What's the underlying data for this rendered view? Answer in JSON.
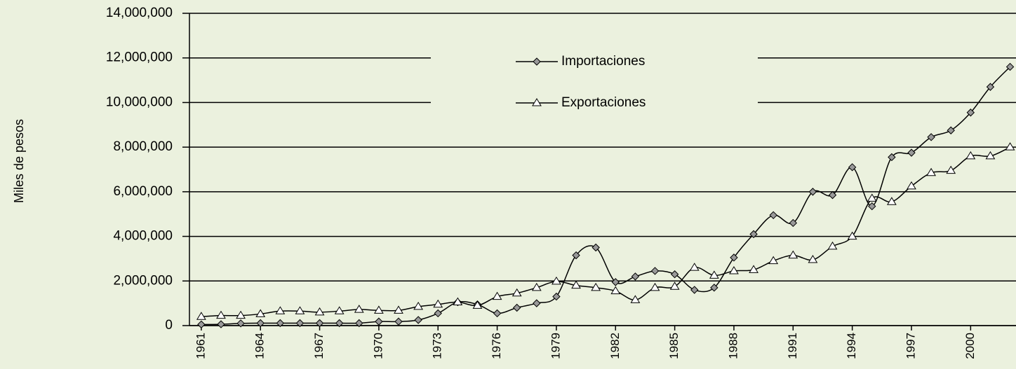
{
  "chart_data": {
    "type": "line",
    "y_label": "Miles de pesos",
    "x": [
      1961,
      1962,
      1963,
      1964,
      1965,
      1966,
      1967,
      1968,
      1969,
      1970,
      1971,
      1972,
      1973,
      1974,
      1975,
      1976,
      1977,
      1978,
      1979,
      1980,
      1981,
      1982,
      1983,
      1984,
      1985,
      1986,
      1987,
      1988,
      1989,
      1990,
      1991,
      1992,
      1993,
      1994,
      1995,
      1996,
      1997,
      1998,
      1999,
      2000,
      2001,
      2002
    ],
    "xlim": [
      1960.4,
      2002.3
    ],
    "xticks": [
      1961,
      1964,
      1967,
      1970,
      1973,
      1976,
      1979,
      1982,
      1985,
      1988,
      1991,
      1994,
      1997,
      2000
    ],
    "ylim": [
      0,
      14000000
    ],
    "yticks": [
      0,
      {
        "value": 2000000,
        "label": "2,000,000"
      },
      {
        "value": 4000000,
        "label": "4,000,000"
      },
      {
        "value": 6000000,
        "label": "6,000,000"
      },
      {
        "value": 8000000,
        "label": "8,000,000"
      },
      {
        "value": 10000000,
        "label": "10,000,000"
      },
      {
        "value": 12000000,
        "label": "12,000,000"
      },
      {
        "value": 14000000,
        "label": "14,000,000"
      }
    ],
    "grid": true,
    "legend": "top",
    "series": [
      {
        "name": "Importaciones",
        "color": "#000000",
        "marker": "diamond",
        "values": [
          50000,
          60000,
          100000,
          110000,
          110000,
          110000,
          110000,
          110000,
          110000,
          180000,
          180000,
          250000,
          550000,
          1050000,
          950000,
          550000,
          800000,
          1000000,
          1300000,
          3150000,
          3500000,
          1950000,
          2200000,
          2450000,
          2300000,
          1600000,
          1700000,
          3050000,
          4100000,
          4950000,
          4600000,
          6000000,
          5850000,
          7100000,
          5350000,
          7550000,
          7750000,
          8450000,
          8750000,
          9550000,
          10700000,
          11600000
        ]
      },
      {
        "name": "Exportaciones",
        "color": "#000000",
        "marker": "triangle",
        "values": [
          400000,
          450000,
          450000,
          520000,
          650000,
          650000,
          600000,
          650000,
          720000,
          680000,
          680000,
          850000,
          950000,
          1050000,
          900000,
          1300000,
          1450000,
          1700000,
          1980000,
          1800000,
          1700000,
          1550000,
          1150000,
          1700000,
          1750000,
          2600000,
          2250000,
          2450000,
          2500000,
          2900000,
          3150000,
          2950000,
          3550000,
          4000000,
          5700000,
          5550000,
          6250000,
          6850000,
          6950000,
          7600000,
          7600000,
          8000000
        ]
      }
    ]
  }
}
